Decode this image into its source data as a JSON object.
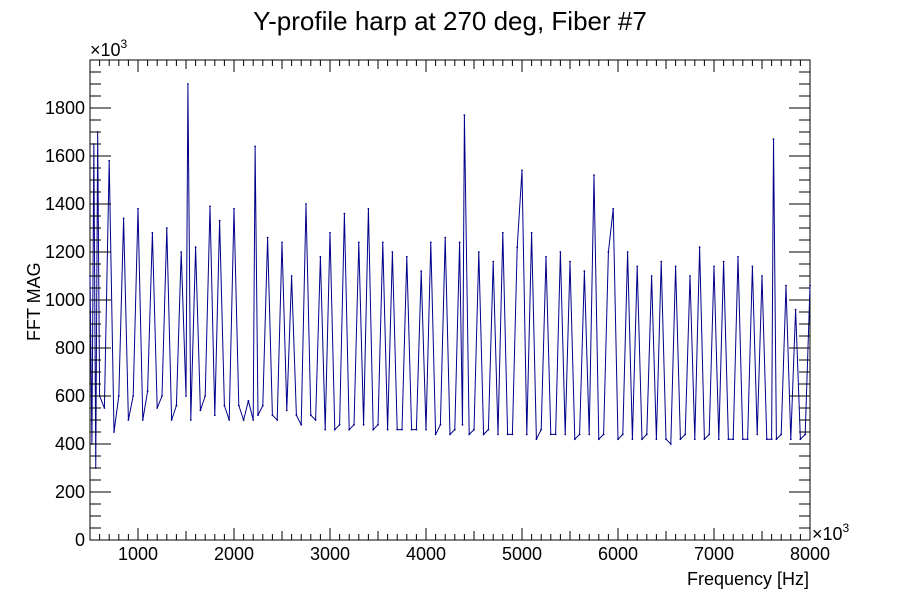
{
  "chart_data": {
    "type": "line",
    "title": "Y-profile harp at 270 deg, Fiber #7",
    "xlabel": "Frequency [Hz]",
    "ylabel": "FFT MAG",
    "x_multiplier": "×10",
    "x_multiplier_exp": "3",
    "y_multiplier": "×10",
    "y_multiplier_exp": "3",
    "xlim": [
      500,
      8000
    ],
    "ylim": [
      0,
      2000
    ],
    "x_ticks": [
      1000,
      2000,
      3000,
      4000,
      5000,
      6000,
      7000,
      8000
    ],
    "y_ticks": [
      0,
      200,
      400,
      600,
      800,
      1000,
      1200,
      1400,
      1600,
      1800
    ],
    "line_color": "#00008b",
    "grid": false,
    "legend": "none",
    "series": [
      {
        "x": [
          500,
          520,
          540,
          560,
          580,
          600,
          650,
          700,
          750,
          800,
          850,
          900,
          950,
          1000,
          1050,
          1100,
          1150,
          1200,
          1250,
          1300,
          1350,
          1400,
          1450,
          1500,
          1520,
          1550,
          1600,
          1650,
          1700,
          1750,
          1800,
          1850,
          1900,
          1950,
          2000,
          2050,
          2100,
          2150,
          2200,
          2220,
          2250,
          2300,
          2350,
          2400,
          2450,
          2500,
          2550,
          2600,
          2650,
          2700,
          2750,
          2800,
          2850,
          2900,
          2950,
          3000,
          3050,
          3100,
          3150,
          3200,
          3250,
          3300,
          3350,
          3400,
          3450,
          3500,
          3550,
          3600,
          3650,
          3700,
          3750,
          3800,
          3850,
          3900,
          3950,
          4000,
          4050,
          4100,
          4150,
          4200,
          4250,
          4300,
          4350,
          4380,
          4400,
          4450,
          4500,
          4550,
          4600,
          4650,
          4700,
          4750,
          4800,
          4850,
          4900,
          4950,
          5000,
          5050,
          5100,
          5150,
          5200,
          5250,
          5300,
          5350,
          5400,
          5450,
          5500,
          5550,
          5600,
          5650,
          5700,
          5750,
          5800,
          5850,
          5900,
          5950,
          6000,
          6050,
          6100,
          6150,
          6200,
          6250,
          6300,
          6350,
          6400,
          6450,
          6500,
          6550,
          6600,
          6650,
          6700,
          6750,
          6800,
          6850,
          6900,
          6950,
          7000,
          7050,
          7100,
          7150,
          7200,
          7250,
          7300,
          7350,
          7400,
          7450,
          7500,
          7550,
          7600,
          7620,
          7650,
          7700,
          7750,
          7800,
          7850,
          7900,
          7950,
          8000
        ],
        "y": [
          1100,
          400,
          1650,
          300,
          1700,
          600,
          550,
          1580,
          450,
          600,
          1340,
          500,
          600,
          1380,
          500,
          620,
          1280,
          550,
          600,
          1300,
          500,
          560,
          1200,
          600,
          1900,
          500,
          1220,
          540,
          600,
          1390,
          520,
          1330,
          560,
          500,
          1380,
          560,
          500,
          580,
          500,
          1640,
          520,
          560,
          1260,
          520,
          500,
          1240,
          540,
          1100,
          520,
          480,
          1400,
          520,
          500,
          1180,
          460,
          1280,
          460,
          480,
          1360,
          460,
          480,
          1240,
          480,
          1380,
          460,
          480,
          1240,
          460,
          1200,
          460,
          460,
          1180,
          460,
          460,
          1120,
          460,
          1240,
          440,
          480,
          1260,
          440,
          460,
          1240,
          480,
          1770,
          440,
          460,
          1200,
          440,
          460,
          1160,
          440,
          1280,
          440,
          440,
          1220,
          1540,
          440,
          1280,
          420,
          460,
          1180,
          440,
          440,
          1200,
          440,
          1160,
          420,
          440,
          1120,
          440,
          1520,
          420,
          440,
          1200,
          1380,
          420,
          440,
          1200,
          420,
          1140,
          420,
          440,
          1100,
          420,
          1160,
          420,
          400,
          1140,
          420,
          440,
          1100,
          420,
          1220,
          420,
          440,
          1140,
          420,
          1160,
          420,
          420,
          1180,
          420,
          420,
          1140,
          440,
          1100,
          420,
          420,
          1670,
          420,
          440,
          1060,
          420,
          960,
          420,
          440,
          1060
        ]
      }
    ]
  }
}
